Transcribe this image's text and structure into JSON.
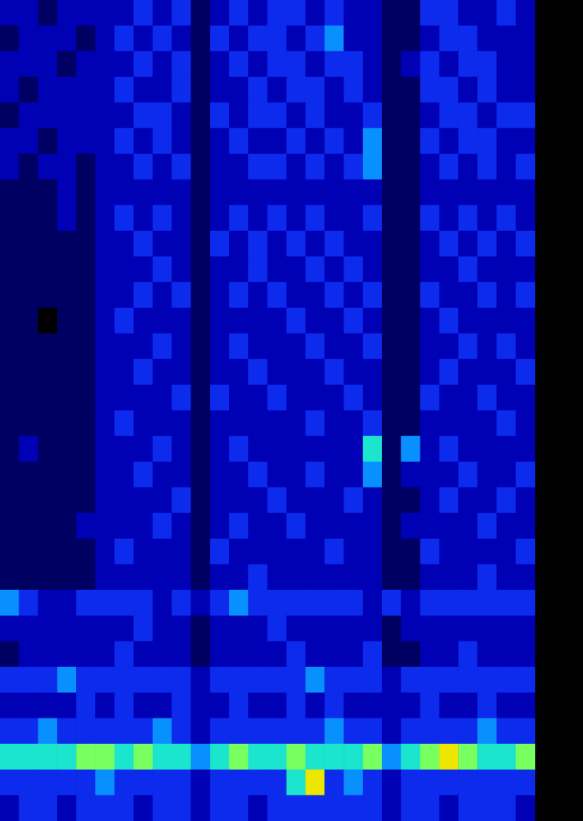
{
  "chart_data": {
    "type": "heatmap",
    "tick_labels": false,
    "zlim": [
      0,
      9
    ],
    "cells": [
      [
        2,
        2,
        1,
        2,
        2,
        2,
        2,
        3,
        2,
        3,
        1,
        2,
        3,
        2,
        3,
        3,
        2,
        3,
        2,
        2,
        1,
        1,
        3,
        3,
        2,
        2,
        3,
        2
      ],
      [
        1,
        2,
        2,
        2,
        1,
        2,
        3,
        2,
        3,
        2,
        1,
        3,
        2,
        3,
        3,
        2,
        3,
        4,
        2,
        2,
        1,
        1,
        2,
        3,
        3,
        2,
        2,
        2
      ],
      [
        2,
        2,
        2,
        1,
        2,
        2,
        2,
        3,
        2,
        3,
        1,
        2,
        3,
        2,
        3,
        3,
        2,
        3,
        3,
        2,
        1,
        2,
        3,
        2,
        3,
        3,
        2,
        2
      ],
      [
        2,
        1,
        2,
        2,
        2,
        2,
        3,
        2,
        2,
        3,
        1,
        2,
        2,
        3,
        2,
        3,
        3,
        2,
        3,
        2,
        1,
        1,
        3,
        3,
        2,
        3,
        2,
        2
      ],
      [
        1,
        2,
        2,
        2,
        2,
        2,
        2,
        3,
        3,
        2,
        1,
        3,
        2,
        3,
        3,
        2,
        3,
        2,
        2,
        3,
        1,
        1,
        2,
        3,
        3,
        2,
        3,
        3
      ],
      [
        2,
        2,
        1,
        2,
        2,
        2,
        3,
        2,
        3,
        2,
        1,
        2,
        3,
        2,
        2,
        3,
        2,
        3,
        2,
        4,
        1,
        1,
        3,
        2,
        3,
        3,
        2,
        2
      ],
      [
        2,
        1,
        2,
        2,
        1,
        2,
        2,
        3,
        2,
        3,
        1,
        2,
        2,
        3,
        3,
        2,
        3,
        2,
        3,
        4,
        1,
        1,
        2,
        3,
        2,
        3,
        2,
        3
      ],
      [
        1,
        1,
        1,
        2,
        1,
        2,
        2,
        2,
        2,
        2,
        1,
        2,
        2,
        2,
        2,
        2,
        2,
        2,
        2,
        2,
        1,
        1,
        2,
        2,
        2,
        2,
        2,
        2
      ],
      [
        1,
        1,
        1,
        2,
        1,
        2,
        3,
        2,
        3,
        2,
        1,
        2,
        3,
        2,
        3,
        2,
        3,
        2,
        2,
        3,
        1,
        1,
        3,
        2,
        3,
        2,
        3,
        2
      ],
      [
        1,
        1,
        1,
        1,
        1,
        2,
        2,
        3,
        2,
        2,
        1,
        3,
        2,
        3,
        2,
        3,
        2,
        3,
        2,
        2,
        1,
        1,
        2,
        3,
        2,
        3,
        2,
        3
      ],
      [
        1,
        1,
        1,
        1,
        1,
        2,
        2,
        2,
        3,
        2,
        1,
        2,
        2,
        3,
        2,
        2,
        3,
        2,
        3,
        2,
        1,
        1,
        2,
        2,
        3,
        2,
        2,
        2
      ],
      [
        1,
        1,
        1,
        1,
        1,
        2,
        2,
        3,
        2,
        3,
        1,
        2,
        3,
        2,
        3,
        2,
        2,
        3,
        2,
        3,
        1,
        1,
        3,
        2,
        2,
        3,
        2,
        3
      ],
      [
        1,
        1,
        0,
        1,
        1,
        2,
        3,
        2,
        2,
        2,
        1,
        2,
        2,
        2,
        2,
        3,
        2,
        2,
        3,
        2,
        1,
        1,
        2,
        3,
        2,
        2,
        2,
        2
      ],
      [
        1,
        1,
        1,
        1,
        1,
        2,
        2,
        2,
        3,
        2,
        1,
        2,
        3,
        2,
        2,
        2,
        3,
        2,
        2,
        3,
        1,
        1,
        2,
        2,
        3,
        2,
        3,
        2
      ],
      [
        1,
        1,
        1,
        1,
        1,
        2,
        2,
        3,
        2,
        2,
        1,
        2,
        2,
        3,
        2,
        2,
        2,
        3,
        2,
        2,
        1,
        1,
        2,
        3,
        2,
        2,
        2,
        3
      ],
      [
        1,
        1,
        1,
        1,
        1,
        2,
        2,
        2,
        2,
        3,
        1,
        3,
        2,
        2,
        3,
        2,
        2,
        2,
        3,
        2,
        1,
        1,
        3,
        2,
        2,
        3,
        2,
        2
      ],
      [
        1,
        1,
        1,
        1,
        1,
        2,
        3,
        2,
        2,
        2,
        1,
        2,
        2,
        2,
        2,
        2,
        3,
        2,
        2,
        3,
        1,
        1,
        2,
        2,
        2,
        2,
        3,
        2
      ],
      [
        1,
        2,
        1,
        1,
        1,
        2,
        2,
        2,
        3,
        2,
        1,
        2,
        3,
        2,
        2,
        2,
        2,
        2,
        2,
        5,
        1,
        4,
        2,
        3,
        2,
        2,
        2,
        2
      ],
      [
        1,
        1,
        1,
        1,
        1,
        2,
        2,
        3,
        2,
        2,
        1,
        2,
        2,
        3,
        2,
        2,
        3,
        2,
        2,
        4,
        1,
        2,
        2,
        2,
        3,
        2,
        2,
        3
      ],
      [
        1,
        1,
        1,
        1,
        1,
        2,
        2,
        2,
        2,
        3,
        1,
        2,
        2,
        2,
        3,
        2,
        2,
        2,
        3,
        2,
        1,
        1,
        2,
        3,
        2,
        2,
        3,
        2
      ],
      [
        1,
        1,
        1,
        1,
        2,
        2,
        2,
        2,
        3,
        2,
        1,
        2,
        3,
        2,
        2,
        3,
        2,
        2,
        2,
        2,
        1,
        2,
        2,
        2,
        2,
        3,
        2,
        2
      ],
      [
        1,
        1,
        1,
        1,
        1,
        2,
        3,
        2,
        2,
        2,
        1,
        3,
        2,
        2,
        2,
        2,
        2,
        3,
        2,
        2,
        1,
        1,
        3,
        2,
        2,
        2,
        2,
        3
      ],
      [
        1,
        1,
        1,
        1,
        1,
        2,
        2,
        2,
        2,
        2,
        1,
        2,
        2,
        3,
        2,
        2,
        2,
        2,
        2,
        2,
        1,
        1,
        2,
        2,
        2,
        3,
        2,
        2
      ],
      [
        4,
        3,
        2,
        2,
        3,
        3,
        3,
        3,
        2,
        3,
        2,
        3,
        4,
        3,
        3,
        3,
        3,
        3,
        3,
        2,
        3,
        2,
        3,
        3,
        3,
        3,
        3,
        3
      ],
      [
        2,
        2,
        2,
        2,
        2,
        2,
        2,
        3,
        2,
        2,
        1,
        2,
        2,
        2,
        3,
        2,
        2,
        2,
        2,
        2,
        1,
        2,
        2,
        2,
        2,
        2,
        2,
        2
      ],
      [
        1,
        2,
        2,
        2,
        2,
        2,
        3,
        2,
        2,
        2,
        1,
        2,
        2,
        2,
        2,
        3,
        2,
        2,
        2,
        3,
        1,
        1,
        2,
        2,
        3,
        2,
        2,
        2
      ],
      [
        3,
        3,
        3,
        4,
        3,
        3,
        3,
        3,
        3,
        3,
        2,
        3,
        3,
        3,
        3,
        3,
        4,
        3,
        3,
        3,
        2,
        3,
        3,
        3,
        3,
        3,
        3,
        3
      ],
      [
        2,
        2,
        2,
        2,
        3,
        2,
        3,
        2,
        2,
        3,
        2,
        2,
        3,
        2,
        2,
        3,
        2,
        3,
        2,
        2,
        2,
        2,
        3,
        2,
        2,
        3,
        2,
        2
      ],
      [
        3,
        3,
        4,
        3,
        3,
        3,
        3,
        3,
        4,
        3,
        2,
        3,
        3,
        3,
        3,
        3,
        3,
        4,
        3,
        3,
        2,
        3,
        3,
        3,
        3,
        4,
        3,
        3
      ],
      [
        5,
        5,
        5,
        5,
        6,
        6,
        5,
        6,
        5,
        5,
        4,
        5,
        6,
        5,
        5,
        6,
        5,
        5,
        5,
        6,
        4,
        5,
        6,
        7,
        6,
        5,
        5,
        6
      ],
      [
        3,
        3,
        3,
        3,
        3,
        4,
        3,
        3,
        3,
        3,
        2,
        3,
        3,
        3,
        3,
        5,
        7,
        3,
        4,
        3,
        2,
        3,
        3,
        3,
        3,
        3,
        3,
        3
      ],
      [
        2,
        3,
        3,
        2,
        3,
        3,
        3,
        2,
        3,
        3,
        2,
        3,
        3,
        2,
        3,
        3,
        3,
        3,
        3,
        3,
        2,
        3,
        3,
        2,
        3,
        3,
        3,
        2
      ]
    ]
  }
}
